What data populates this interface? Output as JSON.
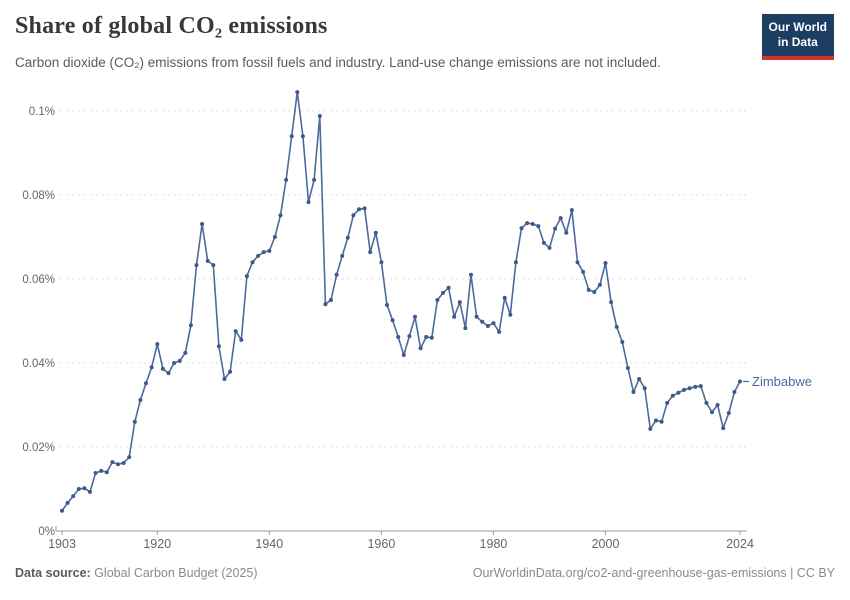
{
  "header": {
    "title": "Share of global CO₂ emissions",
    "subtitle": "Carbon dioxide (CO₂) emissions from fossil fuels and industry. Land-use change emissions are not included."
  },
  "logo": {
    "line1": "Our World",
    "line2": "in Data",
    "bg_color": "#1d3d63",
    "accent_color": "#d0342c"
  },
  "chart_data": {
    "type": "line",
    "title": "Share of global CO₂ emissions",
    "series": [
      {
        "name": "Zimbabwe",
        "color": "#4c6a9c",
        "x": [
          1903,
          1904,
          1905,
          1906,
          1907,
          1908,
          1909,
          1910,
          1911,
          1912,
          1913,
          1914,
          1915,
          1916,
          1917,
          1918,
          1919,
          1920,
          1921,
          1922,
          1923,
          1924,
          1925,
          1926,
          1927,
          1928,
          1929,
          1930,
          1931,
          1932,
          1933,
          1934,
          1935,
          1936,
          1937,
          1938,
          1939,
          1940,
          1941,
          1942,
          1943,
          1944,
          1945,
          1946,
          1947,
          1948,
          1949,
          1950,
          1951,
          1952,
          1953,
          1954,
          1955,
          1956,
          1957,
          1958,
          1959,
          1960,
          1961,
          1962,
          1963,
          1964,
          1965,
          1966,
          1967,
          1968,
          1969,
          1970,
          1971,
          1972,
          1973,
          1974,
          1975,
          1976,
          1977,
          1978,
          1979,
          1980,
          1981,
          1982,
          1983,
          1984,
          1985,
          1986,
          1987,
          1988,
          1989,
          1990,
          1991,
          1992,
          1993,
          1994,
          1995,
          1996,
          1997,
          1998,
          1999,
          2000,
          2001,
          2002,
          2003,
          2004,
          2005,
          2006,
          2007,
          2008,
          2009,
          2010,
          2011,
          2012,
          2013,
          2014,
          2015,
          2016,
          2017,
          2018,
          2019,
          2020,
          2021,
          2022,
          2023,
          2024
        ],
        "values": [
          0.0048,
          0.0067,
          0.0083,
          0.01,
          0.0102,
          0.0093,
          0.0138,
          0.0143,
          0.014,
          0.0164,
          0.0159,
          0.0162,
          0.0176,
          0.026,
          0.0312,
          0.0352,
          0.039,
          0.0445,
          0.0386,
          0.0376,
          0.04,
          0.0405,
          0.0424,
          0.049,
          0.0633,
          0.0731,
          0.0643,
          0.0633,
          0.044,
          0.0362,
          0.0379,
          0.0476,
          0.0455,
          0.0607,
          0.064,
          0.0655,
          0.0664,
          0.0667,
          0.07,
          0.0752,
          0.0836,
          0.094,
          0.1045,
          0.094,
          0.0783,
          0.0836,
          0.0988,
          0.054,
          0.055,
          0.061,
          0.0655,
          0.0698,
          0.0752,
          0.0766,
          0.0768,
          0.0664,
          0.071,
          0.064,
          0.0538,
          0.0502,
          0.0462,
          0.0419,
          0.0464,
          0.051,
          0.0435,
          0.0462,
          0.046,
          0.055,
          0.0567,
          0.0579,
          0.051,
          0.0545,
          0.0483,
          0.061,
          0.051,
          0.0498,
          0.0488,
          0.0495,
          0.0474,
          0.0555,
          0.0515,
          0.064,
          0.0721,
          0.0733,
          0.0731,
          0.0726,
          0.0686,
          0.0674,
          0.072,
          0.0745,
          0.071,
          0.0764,
          0.064,
          0.0617,
          0.0574,
          0.0569,
          0.0586,
          0.0638,
          0.0545,
          0.0486,
          0.045,
          0.0388,
          0.0331,
          0.0362,
          0.034,
          0.0243,
          0.0263,
          0.026,
          0.0305,
          0.0322,
          0.0329,
          0.0336,
          0.034,
          0.0343,
          0.0345,
          0.0305,
          0.0283,
          0.03,
          0.0245,
          0.0281,
          0.0331,
          0.0356
        ]
      }
    ],
    "unit": "%",
    "xlim": [
      1903,
      2024
    ],
    "ylim": [
      0,
      0.1
    ],
    "x_ticks": [
      1903,
      1920,
      1940,
      1960,
      1980,
      2000,
      2024
    ],
    "y_ticks": [
      0,
      0.02,
      0.04,
      0.06,
      0.08,
      0.1
    ],
    "y_tick_labels": [
      "0%",
      "0.02%",
      "0.04%",
      "0.06%",
      "0.08%",
      "0.1%"
    ],
    "grid": true,
    "grid_color": "#dcdcdc",
    "axis_color": "#9a9a9a",
    "tick_label_color": "#666666",
    "end_label": "Zimbabwe",
    "legend_position": "end-of-line"
  },
  "footer": {
    "source_label": "Data source:",
    "source_value": " Global Carbon Budget (2025)",
    "attribution": "OurWorldinData.org/co2-and-greenhouse-gas-emissions | CC BY"
  }
}
